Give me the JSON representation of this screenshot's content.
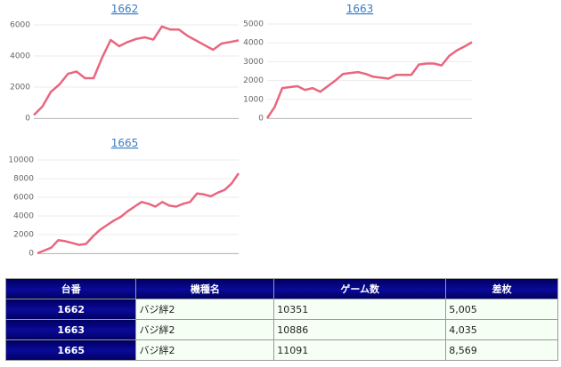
{
  "chart_data": [
    {
      "type": "line",
      "title": "1662",
      "color": "#e9667f",
      "ylim": [
        0,
        6000
      ],
      "yticks": [
        0,
        2000,
        4000,
        6000
      ],
      "grid": true,
      "values": [
        200,
        750,
        1700,
        2170,
        2850,
        3000,
        2570,
        2570,
        3900,
        5030,
        4630,
        4900,
        5100,
        5200,
        5050,
        5900,
        5700,
        5700,
        5300,
        5000,
        4700,
        4400,
        4800,
        4900,
        5005
      ]
    },
    {
      "type": "line",
      "title": "1663",
      "color": "#e9667f",
      "ylim": [
        0,
        5000
      ],
      "yticks": [
        0,
        1000,
        2000,
        3000,
        4000,
        5000
      ],
      "grid": true,
      "values": [
        0,
        600,
        1600,
        1650,
        1700,
        1500,
        1600,
        1400,
        1700,
        2000,
        2350,
        2400,
        2450,
        2350,
        2200,
        2150,
        2100,
        2300,
        2300,
        2300,
        2850,
        2900,
        2900,
        2800,
        3300,
        3600,
        3800,
        4035
      ]
    },
    {
      "type": "line",
      "title": "1665",
      "color": "#e9667f",
      "ylim": [
        0,
        10000
      ],
      "yticks": [
        0,
        2000,
        4000,
        6000,
        8000,
        10000
      ],
      "grid": true,
      "values": [
        0,
        300,
        600,
        1400,
        1300,
        1100,
        900,
        1000,
        1800,
        2500,
        3000,
        3500,
        3900,
        4500,
        5000,
        5500,
        5300,
        5000,
        5500,
        5100,
        5000,
        5300,
        5500,
        6400,
        6300,
        6100,
        6500,
        6800,
        7500,
        8569
      ]
    }
  ],
  "table": {
    "header": [
      "台番",
      "機種名",
      "ゲーム数",
      "差枚"
    ],
    "rows": [
      [
        "1662",
        "バジ絆2",
        "10351",
        "5,005"
      ],
      [
        "1663",
        "バジ絆2",
        "10886",
        "4,035"
      ],
      [
        "1665",
        "バジ絆2",
        "11091",
        "8,569"
      ]
    ]
  }
}
